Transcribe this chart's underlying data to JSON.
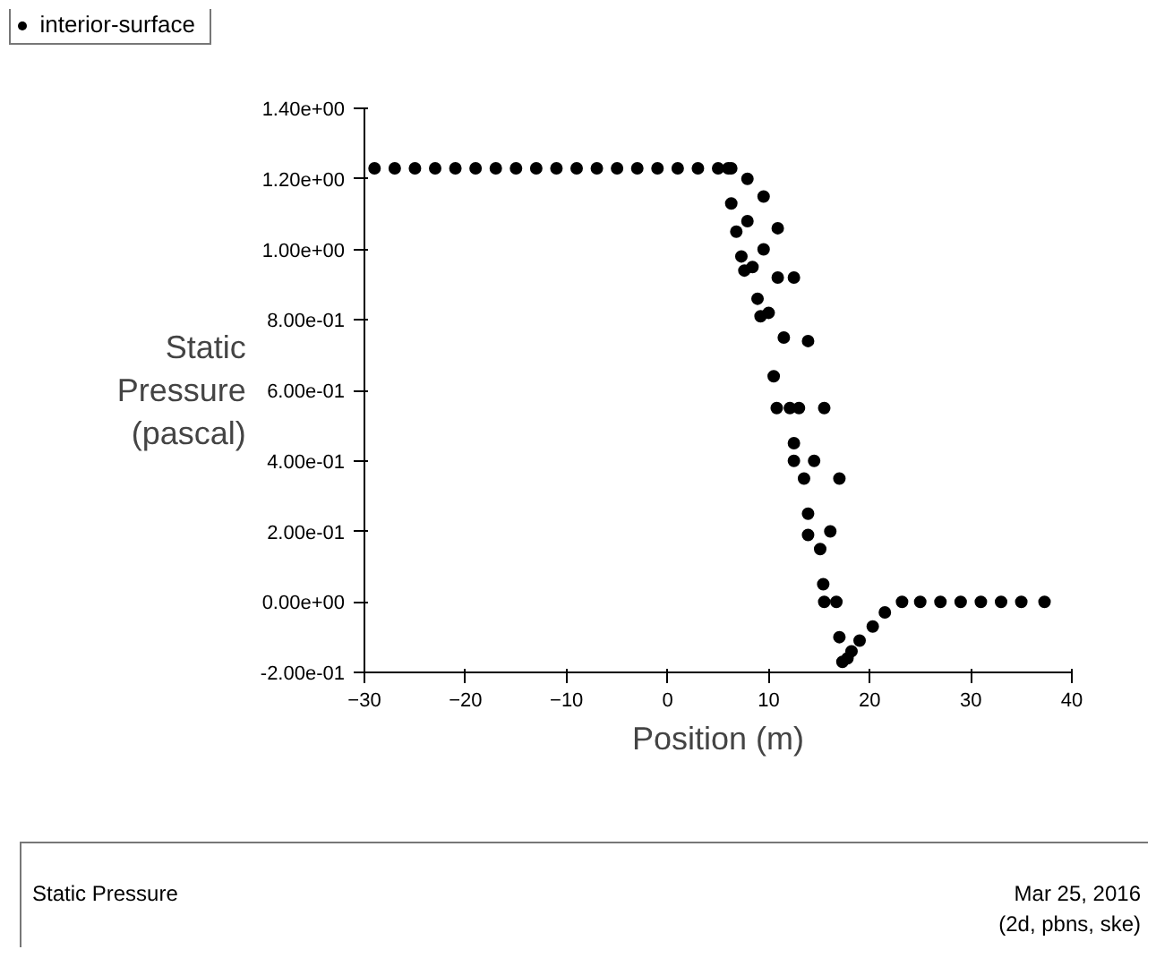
{
  "chart_data": {
    "type": "scatter",
    "xlabel": "Position (m)",
    "ylabel": "Static\nPressure\n(pascal)",
    "xlim": [
      -30,
      40
    ],
    "xticks": [
      -30,
      -20,
      -10,
      0,
      10,
      20,
      30,
      40
    ],
    "ylim": [
      -0.2,
      1.4
    ],
    "yticks": [
      {
        "value": -0.2,
        "label": "-2.00e-01"
      },
      {
        "value": 0,
        "label": "0.00e+00"
      },
      {
        "value": 0.2,
        "label": "2.00e-01"
      },
      {
        "value": 0.4,
        "label": "4.00e-01"
      },
      {
        "value": 0.6,
        "label": "6.00e-01"
      },
      {
        "value": 0.8,
        "label": "8.00e-01"
      },
      {
        "value": 1.0,
        "label": "1.00e+00"
      },
      {
        "value": 1.2,
        "label": "1.20e+00"
      },
      {
        "value": 1.4,
        "label": "1.40e+00"
      }
    ],
    "grid": false,
    "legend": "top left",
    "marker": "circle",
    "series": [
      {
        "name": "interior-surface",
        "color": "#000000",
        "x": [
          -29,
          -27,
          -25,
          -23,
          -21,
          -19,
          -17,
          -15,
          -13,
          -11,
          -9,
          -7,
          -5,
          -3,
          -1,
          1,
          3,
          5,
          6,
          6.3,
          6.3,
          6.8,
          7.3,
          7.6,
          7.9,
          7.9,
          8.4,
          8.9,
          9.2,
          9.5,
          9.5,
          10.0,
          10.5,
          10.8,
          10.9,
          10.9,
          11.5,
          12.1,
          12.5,
          12.5,
          12.5,
          13.0,
          13.5,
          13.9,
          13.9,
          13.9,
          14.5,
          15.1,
          15.4,
          15.5,
          15.5,
          16.1,
          16.7,
          17.0,
          17.0,
          17.3,
          17.8,
          18.2,
          19.0,
          20.3,
          21.5,
          23.2,
          25,
          27,
          29,
          31,
          33,
          35,
          37.3
        ],
        "values": [
          1.23,
          1.23,
          1.23,
          1.23,
          1.23,
          1.23,
          1.23,
          1.23,
          1.23,
          1.23,
          1.23,
          1.23,
          1.23,
          1.23,
          1.23,
          1.23,
          1.23,
          1.23,
          1.23,
          1.23,
          1.13,
          1.05,
          0.98,
          0.94,
          1.2,
          1.08,
          0.95,
          0.86,
          0.81,
          1.15,
          1.0,
          0.82,
          0.64,
          0.55,
          1.06,
          0.92,
          0.75,
          0.55,
          0.45,
          0.92,
          0.4,
          0.55,
          0.35,
          0.25,
          0.74,
          0.19,
          0.4,
          0.15,
          0.05,
          0.55,
          0.0,
          0.2,
          0.0,
          -0.1,
          0.35,
          -0.17,
          -0.16,
          -0.14,
          -0.11,
          -0.07,
          -0.03,
          0.0,
          0.0,
          0.0,
          0.0,
          0.0,
          0.0,
          0.0,
          0.0
        ]
      }
    ],
    "annotations": [
      "Static Pressure",
      "Mar 25, 2016",
      "(2d, pbns, ske)"
    ]
  }
}
